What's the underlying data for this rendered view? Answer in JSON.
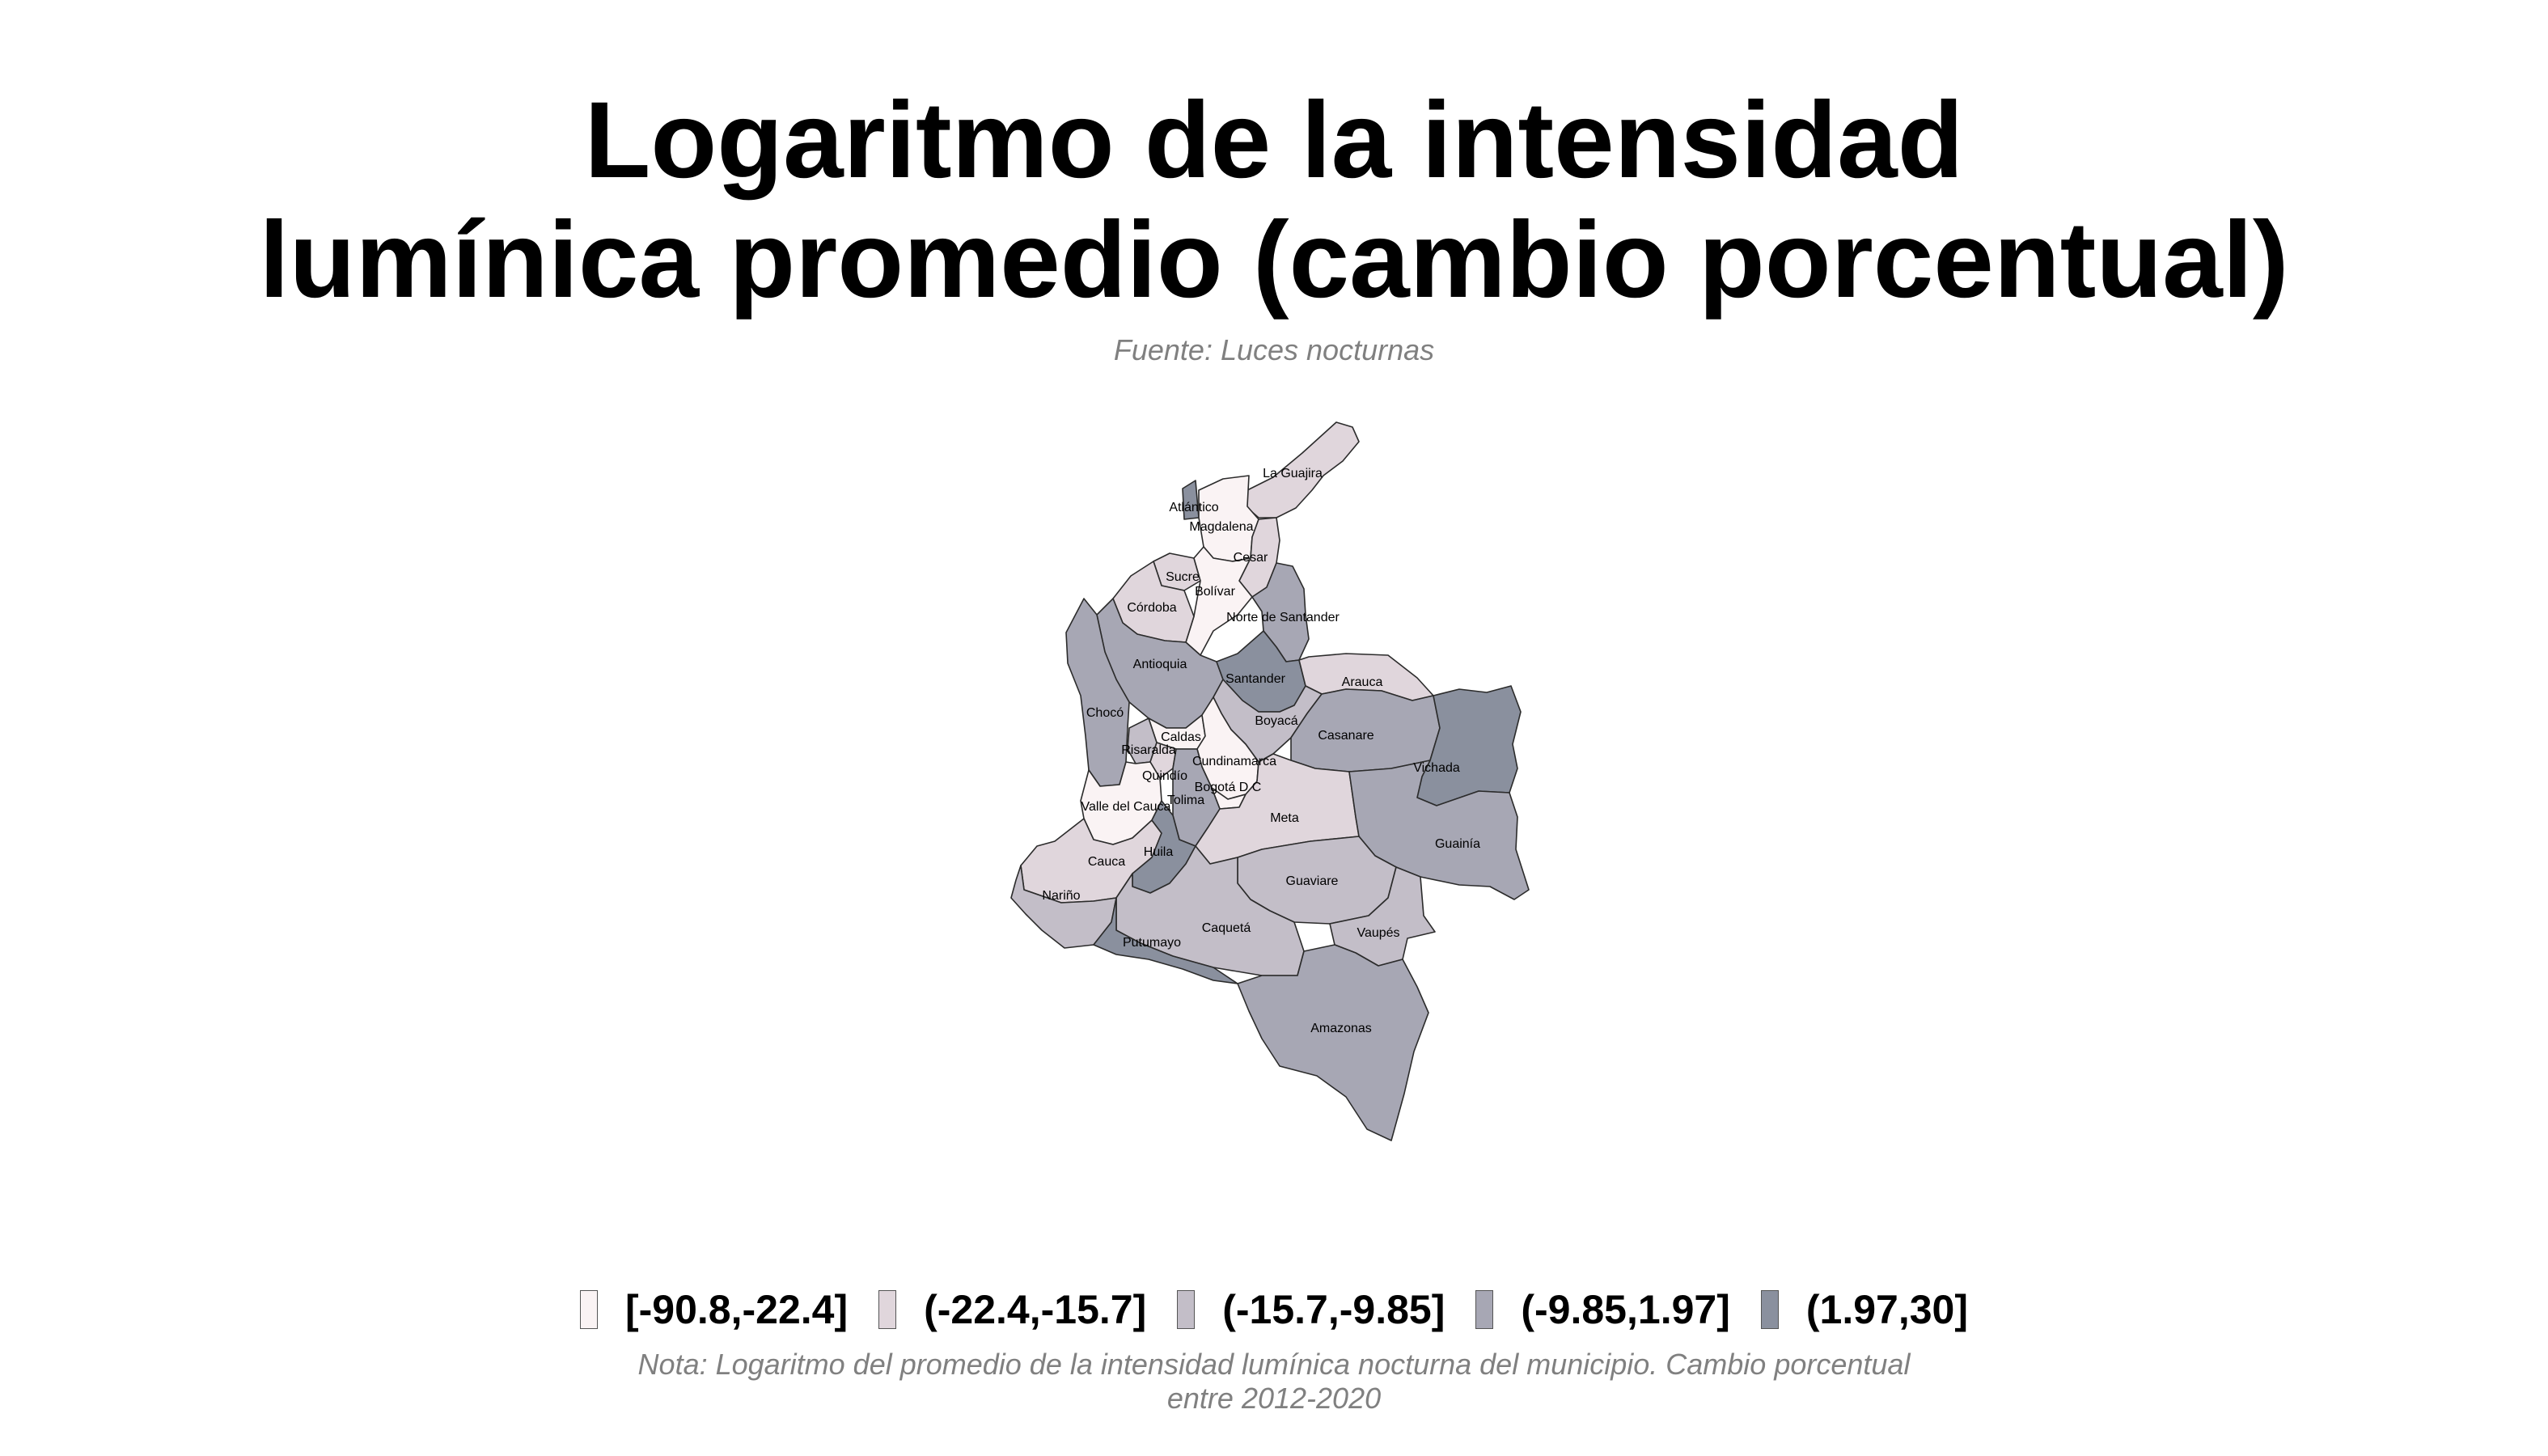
{
  "title": {
    "line1": "Logaritmo de la intensidad",
    "line2": "lumínica promedio (cambio porcentual)"
  },
  "subtitle": "Fuente: Luces nocturnas",
  "map": {
    "colors": [
      "#faf3f4",
      "#e0d6dc",
      "#c3bec8",
      "#a7a7b4",
      "#8a909e"
    ],
    "departments": [
      {
        "name": "La Guajira",
        "class": 1
      },
      {
        "name": "Atlántico",
        "class": 4
      },
      {
        "name": "Magdalena",
        "class": 0
      },
      {
        "name": "Cesar",
        "class": 1
      },
      {
        "name": "Sucre",
        "class": 1
      },
      {
        "name": "Bolívar",
        "class": 0
      },
      {
        "name": "Córdoba",
        "class": 1
      },
      {
        "name": "Norte de Santander",
        "class": 3
      },
      {
        "name": "Antioquia",
        "class": 3
      },
      {
        "name": "Santander",
        "class": 4
      },
      {
        "name": "Arauca",
        "class": 1
      },
      {
        "name": "Chocó",
        "class": 3
      },
      {
        "name": "Boyacá",
        "class": 2
      },
      {
        "name": "Caldas",
        "class": 0
      },
      {
        "name": "Risaralda",
        "class": 2
      },
      {
        "name": "Casanare",
        "class": 3
      },
      {
        "name": "Cundinamarca",
        "class": 0
      },
      {
        "name": "Vichada",
        "class": 4
      },
      {
        "name": "Quindío",
        "class": 1
      },
      {
        "name": "Bogotá D C",
        "class": 0
      },
      {
        "name": "Tolima",
        "class": 3
      },
      {
        "name": "Valle del Cauca",
        "class": 0
      },
      {
        "name": "Meta",
        "class": 1
      },
      {
        "name": "Guainía",
        "class": 3
      },
      {
        "name": "Cauca",
        "class": 1
      },
      {
        "name": "Huila",
        "class": 4
      },
      {
        "name": "Nariño",
        "class": 2
      },
      {
        "name": "Guaviare",
        "class": 2
      },
      {
        "name": "Caquetá",
        "class": 2
      },
      {
        "name": "Vaupés",
        "class": 2
      },
      {
        "name": "Putumayo",
        "class": 4
      },
      {
        "name": "Amazonas",
        "class": 3
      }
    ]
  },
  "legend": {
    "items": [
      {
        "label": "[-90.8,-22.4]",
        "color": "#faf3f4"
      },
      {
        "label": "(-22.4,-15.7]",
        "color": "#e0d6dc"
      },
      {
        "label": "(-15.7,-9.85]",
        "color": "#c3bec8"
      },
      {
        "label": "(-9.85,1.97]",
        "color": "#a7a7b4"
      },
      {
        "label": "(1.97,30]",
        "color": "#8a909e"
      }
    ]
  },
  "note": {
    "line1": "Nota: Logaritmo del promedio de la intensidad lumínica nocturna del municipio. Cambio porcentual",
    "line2": "entre 2012-2020"
  }
}
